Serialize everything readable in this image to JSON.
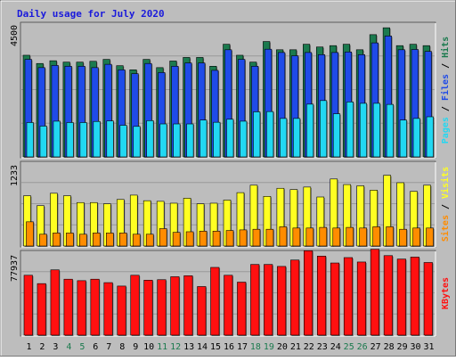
{
  "chart_data": {
    "type": "bar",
    "title": "Daily usage for July 2020",
    "categories": [
      "1",
      "2",
      "3",
      "4",
      "5",
      "6",
      "7",
      "8",
      "9",
      "10",
      "11",
      "12",
      "13",
      "14",
      "15",
      "16",
      "17",
      "18",
      "19",
      "20",
      "21",
      "22",
      "23",
      "24",
      "25",
      "26",
      "27",
      "28",
      "29",
      "30",
      "31"
    ],
    "weekend_days": [
      "4",
      "5",
      "11",
      "12",
      "18",
      "19",
      "25",
      "26"
    ],
    "panels": [
      {
        "id": "top",
        "ymax_label": "4500",
        "ymax": 4500,
        "legend": [
          "Pages",
          "Files",
          "Hits"
        ],
        "series": [
          {
            "name": "Hits",
            "color": "#1b7a4e",
            "values": [
              3700,
              3400,
              3500,
              3450,
              3450,
              3480,
              3550,
              3320,
              3170,
              3550,
              3250,
              3490,
              3620,
              3620,
              3300,
              4100,
              3700,
              3450,
              4200,
              3900,
              3900,
              4100,
              4000,
              4050,
              4100,
              3900,
              4450,
              4700,
              4050,
              4100,
              4050
            ]
          },
          {
            "name": "Files",
            "color": "#1f4be8",
            "values": [
              3550,
              3250,
              3330,
              3300,
              3300,
              3250,
              3370,
              3170,
              3030,
              3400,
              3070,
              3300,
              3420,
              3420,
              3150,
              3900,
              3550,
              3300,
              3920,
              3800,
              3680,
              3800,
              3720,
              3800,
              3820,
              3720,
              4150,
              4400,
              3900,
              3910,
              3840
            ]
          },
          {
            "name": "Pages",
            "color": "#22d8f2",
            "values": [
              1250,
              1120,
              1300,
              1250,
              1250,
              1290,
              1310,
              1150,
              1110,
              1320,
              1200,
              1200,
              1200,
              1340,
              1260,
              1370,
              1300,
              1640,
              1650,
              1400,
              1400,
              1920,
              2050,
              1570,
              2000,
              1950,
              1950,
              1910,
              1340,
              1400,
              1460
            ]
          }
        ]
      },
      {
        "id": "middle",
        "ymax_label": "1233",
        "ymax": 1233,
        "legend": [
          "Sites",
          "Visits"
        ],
        "series": [
          {
            "name": "Visits",
            "color": "#ffff22",
            "values": [
              810,
              650,
              850,
              810,
              700,
              700,
              680,
              750,
              820,
              730,
              720,
              690,
              770,
              680,
              690,
              740,
              860,
              980,
              800,
              930,
              910,
              950,
              790,
              1080,
              990,
              970,
              900,
              1140,
              1020,
              880,
              980
            ]
          },
          {
            "name": "Sites",
            "color": "#ff8c00",
            "values": [
              390,
              190,
              210,
              210,
              190,
              210,
              210,
              210,
              190,
              190,
              280,
              220,
              230,
              240,
              240,
              250,
              260,
              270,
              270,
              310,
              290,
              290,
              300,
              290,
              300,
              290,
              310,
              310,
              270,
              290,
              290
            ]
          }
        ]
      },
      {
        "id": "bottom",
        "ymax_label": "77937",
        "ymax": 77937,
        "legend": [
          "KBytes"
        ],
        "series": [
          {
            "name": "KBytes",
            "color": "#ff1010",
            "values": [
              61000,
              52500,
              66500,
              57000,
              55500,
              57000,
              53500,
              50000,
              61000,
              56000,
              56500,
              59500,
              60500,
              49500,
              69000,
              61000,
              54000,
              72000,
              72000,
              70000,
              76500,
              86000,
              80500,
              73500,
              79000,
              74500,
              87500,
              81000,
              77500,
              79500,
              74000
            ]
          }
        ]
      }
    ],
    "colors": {
      "background": "#bdbdbd",
      "title": "#1a1adc",
      "grid": "#9a9a9a",
      "legend_separator": "#000000"
    }
  }
}
